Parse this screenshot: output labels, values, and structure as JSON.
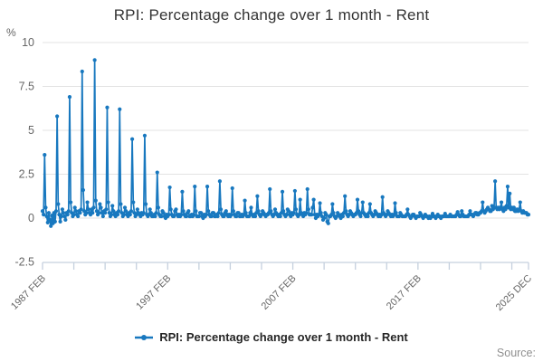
{
  "header": {
    "title": "RPI: Percentage change over 1 month - Rent"
  },
  "legend": {
    "label": "RPI: Percentage change over 1 month - Rent"
  },
  "footer": {
    "source_label": "Source:"
  },
  "chart_data": {
    "type": "line",
    "title": "RPI: Percentage change over 1 month - Rent",
    "unit_label": "%",
    "xlabel": "",
    "ylabel": "%",
    "ylim": [
      -2.5,
      10
    ],
    "y_ticks": [
      10,
      7.5,
      5,
      2.5,
      0,
      -2.5
    ],
    "grid": "horizontal-only",
    "legend_position": "bottom-center",
    "x_axis": {
      "start_year": 1987.083,
      "end_year": 2025.917,
      "minor_tick_interval_years": 2.5,
      "labeled_ticks": [
        {
          "text": "1987 FEB",
          "year": 1987.083
        },
        {
          "text": "1997 FEB",
          "year": 1997.083
        },
        {
          "text": "2007 FEB",
          "year": 2007.083
        },
        {
          "text": "2017 FEB",
          "year": 2017.083
        },
        {
          "text": "2025 DEC",
          "year": 2025.917
        }
      ]
    },
    "series": [
      {
        "name": "RPI: Percentage change over 1 month - Rent",
        "color": "#1878bf",
        "frequency": "monthly",
        "start": {
          "year": 1987,
          "month": "FEB"
        },
        "end": {
          "year": 2025,
          "month": "DEC"
        },
        "values": [
          0.4,
          0.2,
          3.6,
          0.6,
          0.1,
          -0.25,
          0.3,
          -0.1,
          -0.45,
          0.15,
          -0.3,
          0.3,
          -0.2,
          0.4,
          5.8,
          0.8,
          0.2,
          -0.2,
          0.1,
          0.5,
          0.3,
          0.1,
          -0.1,
          0.3,
          0.2,
          0.4,
          6.9,
          0.9,
          0.3,
          0.1,
          0.2,
          0.6,
          0.4,
          0.2,
          0.1,
          0.4,
          0.3,
          0.5,
          8.35,
          1.6,
          0.4,
          0.2,
          0.3,
          0.9,
          0.5,
          0.3,
          0.2,
          0.5,
          0.3,
          0.6,
          9.0,
          1.0,
          0.4,
          0.2,
          0.3,
          0.8,
          0.6,
          0.3,
          0.1,
          0.4,
          0.3,
          0.5,
          6.3,
          0.9,
          0.3,
          0.1,
          0.2,
          0.7,
          0.4,
          0.2,
          0.1,
          0.3,
          0.2,
          0.4,
          6.2,
          0.8,
          0.3,
          0.1,
          0.2,
          0.6,
          0.4,
          0.2,
          0.1,
          0.3,
          0.2,
          0.4,
          4.5,
          0.9,
          0.3,
          0.1,
          0.2,
          0.5,
          0.3,
          0.2,
          0.1,
          0.3,
          0.2,
          0.3,
          4.7,
          0.8,
          0.2,
          0.1,
          0.2,
          0.5,
          0.3,
          0.1,
          0.1,
          0.2,
          0.1,
          0.3,
          2.6,
          0.6,
          0.2,
          0.1,
          0.1,
          0.4,
          0.3,
          0.1,
          0.0,
          0.2,
          0.1,
          0.2,
          1.75,
          0.5,
          0.2,
          0.1,
          0.1,
          0.4,
          0.5,
          0.2,
          0.1,
          0.2,
          0.1,
          0.2,
          1.5,
          0.4,
          0.2,
          0.1,
          0.1,
          0.3,
          0.4,
          0.1,
          0.1,
          0.2,
          0.1,
          0.2,
          1.8,
          0.4,
          0.1,
          0.1,
          0.1,
          0.3,
          0.3,
          0.1,
          0.0,
          0.2,
          0.1,
          0.2,
          1.8,
          0.4,
          0.2,
          0.1,
          0.1,
          0.3,
          0.3,
          0.1,
          0.1,
          0.2,
          0.1,
          0.3,
          2.1,
          0.5,
          0.2,
          0.1,
          0.1,
          0.3,
          0.4,
          0.2,
          0.1,
          0.2,
          0.1,
          0.2,
          1.7,
          0.4,
          0.2,
          0.1,
          0.1,
          0.3,
          0.3,
          0.1,
          0.1,
          0.2,
          0.1,
          0.2,
          1.0,
          0.3,
          0.1,
          0.1,
          0.1,
          0.3,
          0.6,
          0.2,
          0.1,
          0.2,
          0.1,
          0.3,
          1.25,
          0.4,
          0.2,
          0.1,
          0.2,
          0.4,
          0.3,
          0.2,
          0.1,
          0.2,
          0.2,
          0.3,
          1.65,
          0.4,
          0.2,
          0.1,
          0.2,
          0.5,
          0.3,
          0.2,
          0.1,
          0.2,
          0.1,
          0.3,
          1.5,
          0.4,
          0.2,
          0.1,
          0.2,
          0.5,
          0.4,
          0.2,
          0.1,
          0.3,
          0.2,
          0.3,
          1.55,
          0.5,
          0.2,
          0.1,
          0.2,
          1.05,
          0.3,
          0.2,
          0.1,
          0.3,
          0.2,
          0.3,
          1.65,
          0.5,
          0.2,
          0.2,
          0.2,
          0.6,
          1.05,
          0.2,
          0.0,
          0.2,
          0.1,
          0.2,
          0.85,
          0.3,
          0.1,
          -0.1,
          0.0,
          0.3,
          0.2,
          -0.2,
          -0.3,
          0.1,
          0.1,
          0.2,
          0.8,
          0.3,
          0.1,
          0.0,
          0.1,
          0.3,
          0.2,
          0.1,
          0.0,
          0.2,
          0.1,
          0.3,
          1.25,
          0.4,
          0.2,
          0.1,
          0.2,
          0.4,
          0.3,
          0.2,
          0.1,
          0.2,
          0.2,
          0.3,
          1.05,
          0.4,
          0.2,
          0.1,
          0.3,
          0.9,
          0.3,
          0.2,
          0.1,
          0.2,
          0.1,
          0.3,
          0.8,
          0.3,
          0.2,
          0.1,
          0.2,
          0.4,
          0.3,
          0.2,
          0.1,
          0.2,
          0.1,
          0.2,
          1.2,
          0.3,
          0.2,
          0.1,
          0.2,
          0.4,
          0.3,
          0.2,
          0.1,
          0.2,
          0.1,
          0.2,
          0.85,
          0.3,
          0.1,
          0.1,
          0.1,
          0.3,
          0.2,
          0.1,
          0.1,
          0.1,
          0.1,
          0.2,
          0.5,
          0.2,
          0.1,
          0.0,
          0.1,
          0.2,
          0.2,
          0.1,
          0.0,
          0.1,
          0.1,
          0.1,
          0.3,
          0.2,
          0.1,
          0.0,
          0.1,
          0.2,
          0.1,
          0.1,
          0.0,
          0.1,
          0.0,
          0.1,
          0.25,
          0.1,
          0.1,
          0.0,
          0.1,
          0.2,
          0.1,
          0.1,
          0.0,
          0.1,
          0.1,
          0.1,
          0.25,
          0.1,
          0.1,
          0.1,
          0.1,
          0.2,
          0.1,
          0.1,
          0.1,
          0.1,
          0.1,
          0.2,
          0.35,
          0.2,
          0.1,
          0.1,
          0.4,
          0.2,
          0.1,
          0.1,
          0.1,
          0.1,
          0.1,
          0.2,
          0.4,
          0.2,
          0.2,
          0.1,
          0.2,
          0.3,
          0.3,
          0.2,
          0.2,
          0.3,
          0.3,
          0.4,
          0.9,
          0.4,
          0.3,
          0.4,
          0.5,
          0.6,
          0.5,
          0.4,
          0.4,
          0.7,
          0.5,
          0.6,
          2.1,
          0.6,
          0.5,
          0.6,
          0.5,
          0.6,
          0.9,
          0.5,
          0.4,
          0.6,
          0.5,
          0.7,
          1.8,
          0.6,
          1.4,
          0.5,
          0.6,
          0.5,
          0.6,
          0.4,
          0.4,
          0.5,
          0.4,
          0.5,
          0.9,
          0.4,
          0.3,
          0.4,
          0.3,
          0.3,
          0.3,
          0.2,
          0.2
        ]
      }
    ],
    "colors": {
      "series_blue": "#1878bf",
      "gridline": "#e3e3e3",
      "axis": "#c5d0de",
      "title_text": "#333333",
      "tick_text": "#666666",
      "source_text": "#8f8f8f"
    }
  }
}
